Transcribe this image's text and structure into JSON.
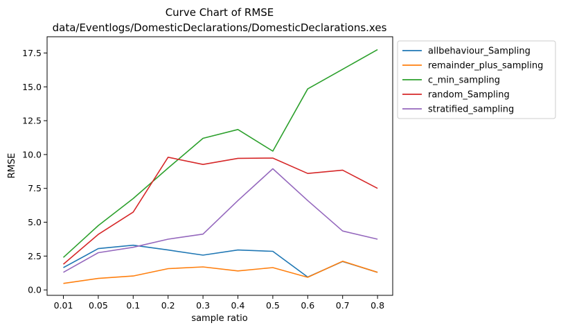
{
  "chart_data": {
    "type": "line",
    "title": "Curve Chart of RMSE",
    "subtitle": "data/Eventlogs/DomesticDeclarations/DomesticDeclarations.xes",
    "xlabel": "sample ratio",
    "ylabel": "RMSE",
    "categories": [
      "0.01",
      "0.05",
      "0.1",
      "0.2",
      "0.3",
      "0.4",
      "0.5",
      "0.6",
      "0.7",
      "0.8"
    ],
    "yticks": [
      "0.0",
      "2.5",
      "5.0",
      "7.5",
      "10.0",
      "12.5",
      "15.0",
      "17.5"
    ],
    "ylim": [
      -0.4,
      18.7
    ],
    "grid": false,
    "legend_position": "outside-right",
    "series": [
      {
        "name": "allbehaviour_Sampling",
        "color": "#1f77b4",
        "values": [
          1.65,
          3.05,
          3.3,
          2.95,
          2.57,
          2.95,
          2.85,
          0.95,
          2.1,
          1.3
        ]
      },
      {
        "name": "remainder_plus_sampling",
        "color": "#ff7f0e",
        "values": [
          0.48,
          0.85,
          1.03,
          1.57,
          1.7,
          1.4,
          1.65,
          0.93,
          2.12,
          1.3
        ]
      },
      {
        "name": "c_min_sampling",
        "color": "#2ca02c",
        "values": [
          2.4,
          4.75,
          6.75,
          9.0,
          11.2,
          11.85,
          10.25,
          14.85,
          16.3,
          17.75
        ]
      },
      {
        "name": "random_Sampling",
        "color": "#d62728",
        "values": [
          1.9,
          4.1,
          5.75,
          9.8,
          9.27,
          9.72,
          9.74,
          8.6,
          8.85,
          7.5
        ]
      },
      {
        "name": "stratified_sampling",
        "color": "#9467bd",
        "values": [
          1.3,
          2.75,
          3.15,
          3.75,
          4.12,
          6.6,
          8.95,
          6.6,
          4.35,
          3.75
        ]
      }
    ]
  }
}
